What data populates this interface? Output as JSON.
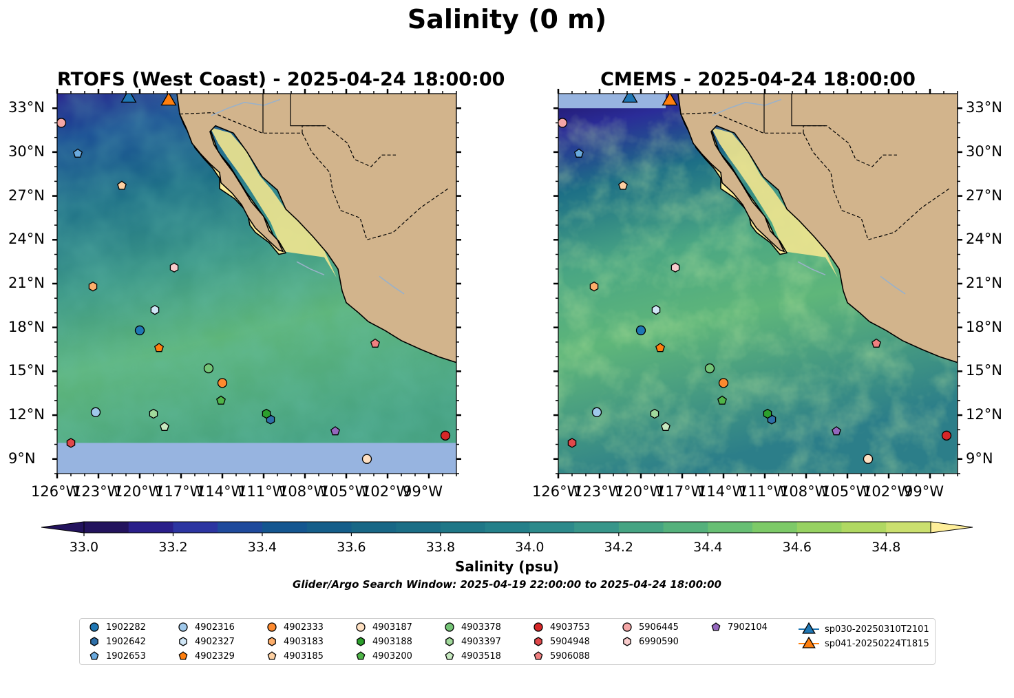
{
  "title": "Salinity (0 m)",
  "panels": [
    {
      "id": "rtofs",
      "title": "RTOFS (West Coast) - 2025-04-24 18:00:00"
    },
    {
      "id": "cmems",
      "title": "CMEMS - 2025-04-24 18:00:00"
    }
  ],
  "axes": {
    "lon_ticks": [
      "126°W",
      "123°W",
      "120°W",
      "117°W",
      "114°W",
      "111°W",
      "108°W",
      "105°W",
      "102°W",
      "99°W"
    ],
    "lat_ticks": [
      "33°N",
      "30°N",
      "27°N",
      "24°N",
      "21°N",
      "18°N",
      "15°N",
      "12°N",
      "9°N"
    ],
    "lon_range": [
      -126,
      -97
    ],
    "lat_range": [
      8,
      34
    ]
  },
  "colorbar": {
    "label": "Salinity (psu)",
    "ticks": [
      "33.0",
      "33.2",
      "33.4",
      "33.6",
      "33.8",
      "34.0",
      "34.2",
      "34.4",
      "34.6",
      "34.8"
    ],
    "range": [
      33.0,
      34.9
    ],
    "colors": [
      "#23135d",
      "#2a1f8a",
      "#2c35a1",
      "#1f4a9c",
      "#145690",
      "#155e8a",
      "#186786",
      "#1b6e86",
      "#1f7787",
      "#24808a",
      "#2d8a8b",
      "#38968a",
      "#46a483",
      "#55b17c",
      "#68bf74",
      "#7dca68",
      "#97d262",
      "#b0d862",
      "#cbe06f",
      "#ffef9a"
    ]
  },
  "search_window": "Glider/Argo Search Window: 2025-04-19 22:00:00 to 2025-04-24 18:00:00",
  "land_color": "#d2b48c",
  "floats": [
    {
      "id": "1902282",
      "marker": "circle",
      "color": "#1f77b4",
      "lon": -120.0,
      "lat": 17.8
    },
    {
      "id": "1902642",
      "marker": "hexagon",
      "color": "#2e6fa8",
      "lon": -110.5,
      "lat": 11.7
    },
    {
      "id": "1902653",
      "marker": "pentagon",
      "color": "#6aa9dd",
      "lon": -124.5,
      "lat": 29.9
    },
    {
      "id": "4902316",
      "marker": "circle",
      "color": "#9fc8ea",
      "lon": -123.2,
      "lat": 12.2
    },
    {
      "id": "4902327",
      "marker": "hexagon",
      "color": "#d0e6f6",
      "lon": -118.9,
      "lat": 19.2
    },
    {
      "id": "4902329",
      "marker": "pentagon",
      "color": "#ff7f0e",
      "lon": -118.6,
      "lat": 16.6
    },
    {
      "id": "4902333",
      "marker": "circle",
      "color": "#fd8a2f",
      "lon": -114.0,
      "lat": 14.2
    },
    {
      "id": "4903183",
      "marker": "hexagon",
      "color": "#fdae6b",
      "lon": -123.4,
      "lat": 20.8
    },
    {
      "id": "4903185",
      "marker": "pentagon",
      "color": "#fdd0a2",
      "lon": -121.3,
      "lat": 27.7
    },
    {
      "id": "4903187",
      "marker": "circle",
      "color": "#fee0c2",
      "lon": -103.5,
      "lat": 9.0
    },
    {
      "id": "4903188",
      "marker": "hexagon",
      "color": "#2ca02c",
      "lon": -110.8,
      "lat": 12.1
    },
    {
      "id": "4903200",
      "marker": "pentagon",
      "color": "#4fb548",
      "lon": -114.1,
      "lat": 13.0
    },
    {
      "id": "4903378",
      "marker": "circle",
      "color": "#74c476",
      "lon": -115.0,
      "lat": 15.2
    },
    {
      "id": "4903397",
      "marker": "hexagon",
      "color": "#a1d99b",
      "lon": -119.0,
      "lat": 12.1
    },
    {
      "id": "4903518",
      "marker": "pentagon",
      "color": "#c7e9c0",
      "lon": -118.2,
      "lat": 11.2
    },
    {
      "id": "4903753",
      "marker": "circle",
      "color": "#d62728",
      "lon": -97.8,
      "lat": 10.6
    },
    {
      "id": "5904948",
      "marker": "hexagon",
      "color": "#e0484a",
      "lon": -125.0,
      "lat": 10.1
    },
    {
      "id": "5906088",
      "marker": "pentagon",
      "color": "#f08080",
      "lon": -102.9,
      "lat": 16.9
    },
    {
      "id": "5906445",
      "marker": "circle",
      "color": "#f4a6a6",
      "lon": -125.7,
      "lat": 32.0
    },
    {
      "id": "6990590",
      "marker": "hexagon",
      "color": "#f9cccc",
      "lon": -117.5,
      "lat": 22.1
    },
    {
      "id": "7902104",
      "marker": "pentagon",
      "color": "#9467bd",
      "lon": -105.8,
      "lat": 10.9
    }
  ],
  "gliders": [
    {
      "id": "sp030-20250310T2101",
      "marker": "triangle",
      "color": "#1f77b4",
      "lon": -120.8,
      "lat": 33.7
    },
    {
      "id": "sp041-20250224T1815",
      "marker": "triangle",
      "color": "#ff7f0e",
      "lon": -117.9,
      "lat": 33.5
    }
  ]
}
